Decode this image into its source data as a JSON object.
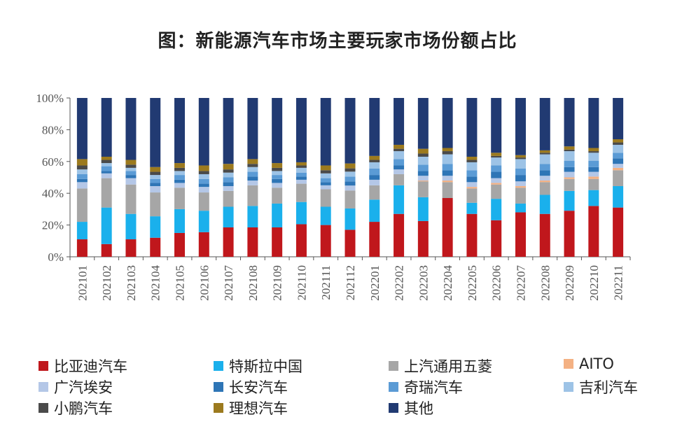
{
  "title": "图：新能源汽车市场主要玩家市场份额占比",
  "chart_data": {
    "type": "bar",
    "stacked": true,
    "ylim": [
      0,
      100
    ],
    "yticks": [
      "0%",
      "20%",
      "40%",
      "60%",
      "80%",
      "100%"
    ],
    "ytick_values": [
      0,
      20,
      40,
      60,
      80,
      100
    ],
    "categories": [
      "202101",
      "202102",
      "202103",
      "202104",
      "202105",
      "202106",
      "202107",
      "202108",
      "202109",
      "202110",
      "202111",
      "202112",
      "202201",
      "202202",
      "202203",
      "202204",
      "202205",
      "202206",
      "202207",
      "202208",
      "202209",
      "202210",
      "202211"
    ],
    "legend_position": "bottom",
    "series": [
      {
        "name": "比亚迪汽车",
        "color": "#C0171C",
        "values": [
          11,
          8,
          11,
          12,
          15,
          15.5,
          18.5,
          18.5,
          18.5,
          20.5,
          20,
          16.5,
          22,
          27,
          22.5,
          37,
          27,
          23,
          28,
          27,
          29,
          32,
          31
        ]
      },
      {
        "name": "特斯拉中国",
        "color": "#1AB0EC",
        "values": [
          11,
          23,
          16,
          13.5,
          15,
          13.5,
          13,
          13.5,
          15,
          14,
          11.5,
          13,
          14,
          18,
          15,
          0,
          7,
          13.5,
          5.5,
          12,
          12.5,
          10,
          13.5
        ]
      },
      {
        "name": "上汽通用五菱",
        "color": "#A6A6A6",
        "values": [
          21,
          18.5,
          18.5,
          15,
          13.5,
          11.5,
          10,
          13,
          10,
          11.5,
          11,
          11,
          9,
          7,
          10,
          10,
          9,
          9,
          10,
          8,
          7.5,
          7,
          10
        ]
      },
      {
        "name": "AITO",
        "color": "#F4B183",
        "values": [
          0,
          0,
          0,
          0,
          0,
          0,
          0,
          0,
          0,
          0,
          0,
          0,
          0,
          0,
          0.5,
          1,
          1,
          1,
          1,
          1,
          1,
          1.5,
          1.5
        ]
      },
      {
        "name": "广汽埃安",
        "color": "#B4C7E7",
        "values": [
          4,
          3,
          4,
          4,
          3,
          3.5,
          3,
          3,
          3,
          2.5,
          2.5,
          3,
          3.5,
          3,
          3,
          3,
          3,
          3,
          3,
          3,
          3.5,
          3,
          2.5
        ]
      },
      {
        "name": "长安汽车",
        "color": "#2E75B6",
        "values": [
          2,
          1.5,
          2,
          2,
          2,
          2,
          2.5,
          2.5,
          2.5,
          2,
          2,
          2.5,
          3,
          2.5,
          3,
          3.5,
          3.5,
          4,
          4,
          3.5,
          3,
          3,
          3.5
        ]
      },
      {
        "name": "奇瑞汽车",
        "color": "#5B9BD5",
        "values": [
          3,
          3,
          2.5,
          2.5,
          3,
          3,
          3,
          3,
          2.5,
          2.5,
          2.5,
          3,
          4,
          4,
          4,
          4,
          4,
          4,
          4,
          4,
          4,
          4,
          3.5
        ]
      },
      {
        "name": "吉利汽车",
        "color": "#9DC3E6",
        "values": [
          3,
          2,
          2,
          2.5,
          2.5,
          3,
          3,
          3,
          2.5,
          3,
          3,
          3,
          4,
          5,
          5,
          6,
          5,
          5,
          6,
          6,
          6,
          5,
          5
        ]
      },
      {
        "name": "小鹏汽车",
        "color": "#4A4A4A",
        "values": [
          2.5,
          2,
          2,
          2,
          2,
          2,
          2,
          2,
          2,
          1.5,
          2,
          2,
          1.5,
          1.5,
          2,
          2,
          1.5,
          1,
          1,
          1,
          1,
          1,
          1.5
        ]
      },
      {
        "name": "理想汽车",
        "color": "#9C7A1E",
        "values": [
          4,
          2,
          3,
          3,
          3,
          3.5,
          3.5,
          3,
          3,
          2,
          3,
          3,
          2.5,
          2.5,
          3,
          2,
          2,
          2,
          1.5,
          1.5,
          2,
          2,
          2
        ]
      },
      {
        "name": "其他",
        "color": "#213A72",
        "values": [
          38.5,
          37,
          39,
          43.5,
          41,
          42.5,
          41.5,
          38.5,
          41,
          40.5,
          42.5,
          40,
          36.5,
          29.5,
          32,
          31.5,
          37,
          34.5,
          36,
          33,
          30.5,
          31.5,
          26
        ]
      }
    ]
  }
}
